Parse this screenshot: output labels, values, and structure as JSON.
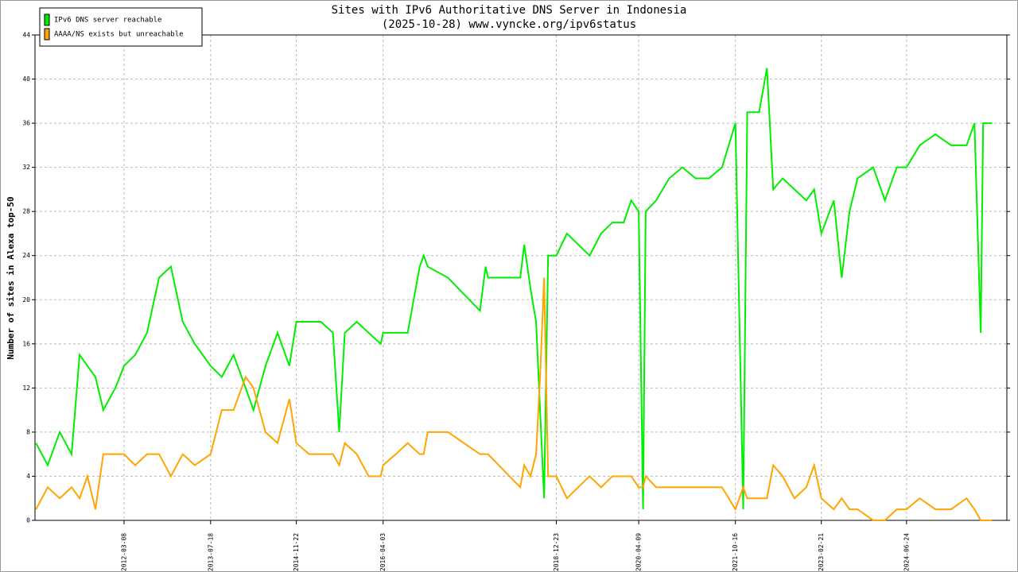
{
  "chart_data": {
    "type": "line",
    "title": "Sites with IPv6 Authoritative DNS Server in Indonesia",
    "subtitle": "(2025-10-28) www.vyncke.org/ipv6status",
    "y_label": "Number of sites in Alexa top-50",
    "x": [
      "2010-10-20",
      "2010-12-26",
      "2011-03-05",
      "2011-05-12",
      "2011-06-27",
      "2011-08-11",
      "2011-09-26",
      "2011-11-10",
      "2012-01-18",
      "2012-03-08",
      "2012-05-11",
      "2012-07-18",
      "2012-09-25",
      "2012-12-02",
      "2013-02-08",
      "2013-04-18",
      "2013-07-18",
      "2013-09-20",
      "2013-11-27",
      "2014-02-04",
      "2014-03-21",
      "2014-05-29",
      "2014-08-06",
      "2014-10-13",
      "2014-11-22",
      "2015-02-03",
      "2015-04-12",
      "2015-06-20",
      "2015-07-26",
      "2015-08-27",
      "2015-11-04",
      "2016-01-11",
      "2016-03-20",
      "2016-04-03",
      "2016-06-15",
      "2016-08-22",
      "2016-10-30",
      "2016-11-22",
      "2016-12-15",
      "2017-04-10",
      "2017-10-11",
      "2017-11-12",
      "2017-11-26",
      "2018-05-30",
      "2018-06-22",
      "2018-07-28",
      "2018-08-29",
      "2018-09-21",
      "2018-10-14",
      "2018-11-06",
      "2018-12-23",
      "2019-02-22",
      "2019-04-28",
      "2019-07-02",
      "2019-09-06",
      "2019-11-10",
      "2020-01-14",
      "2020-02-26",
      "2020-04-09",
      "2020-05-04",
      "2020-05-19",
      "2020-07-18",
      "2020-10-01",
      "2020-12-16",
      "2021-03-01",
      "2021-05-17",
      "2021-07-31",
      "2021-10-16",
      "2021-11-30",
      "2021-12-23",
      "2022-03-01",
      "2022-04-15",
      "2022-05-21",
      "2022-07-14",
      "2022-09-20",
      "2022-11-27",
      "2023-01-11",
      "2023-02-21",
      "2023-05-04",
      "2023-06-18",
      "2023-08-02",
      "2023-09-17",
      "2023-12-16",
      "2024-02-21",
      "2024-04-29",
      "2024-06-24",
      "2024-09-08",
      "2024-12-07",
      "2025-03-07",
      "2025-06-04",
      "2025-07-19",
      "2025-08-24",
      "2025-09-07",
      "2025-10-28"
    ],
    "series": [
      {
        "name": "IPv6 DNS server reachable",
        "color": "#00ee00",
        "values": [
          7,
          5,
          8,
          6,
          15,
          14,
          13,
          10,
          12,
          14,
          15,
          17,
          22,
          23,
          18,
          16,
          14,
          13,
          15,
          12,
          10,
          14,
          17,
          14,
          18,
          18,
          18,
          17,
          8,
          17,
          18,
          17,
          16,
          17,
          17,
          17,
          23,
          24,
          23,
          22,
          19,
          23,
          22,
          22,
          25,
          21,
          18,
          10,
          2,
          24,
          24,
          26,
          25,
          24,
          26,
          27,
          27,
          29,
          28,
          1,
          28,
          29,
          31,
          32,
          31,
          31,
          32,
          36,
          1,
          37,
          37,
          41,
          30,
          31,
          30,
          29,
          30,
          26,
          29,
          22,
          28,
          31,
          32,
          29,
          32,
          32,
          34,
          35,
          34,
          34,
          36,
          17,
          36,
          36
        ]
      },
      {
        "name": "AAAA/NS exists but unreachable",
        "color": "#ffa500",
        "values": [
          1,
          3,
          2,
          3,
          2,
          4,
          1,
          6,
          6,
          6,
          5,
          6,
          6,
          4,
          6,
          5,
          6,
          10,
          10,
          13,
          12,
          8,
          7,
          11,
          7,
          6,
          6,
          6,
          5,
          7,
          6,
          4,
          4,
          5,
          6,
          7,
          6,
          6,
          8,
          8,
          6,
          6,
          6,
          3,
          5,
          4,
          6,
          13,
          22,
          4,
          4,
          2,
          3,
          4,
          3,
          4,
          4,
          4,
          3,
          3,
          4,
          3,
          3,
          3,
          3,
          3,
          3,
          1,
          3,
          2,
          2,
          2,
          5,
          4,
          2,
          3,
          5,
          2,
          1,
          2,
          1,
          1,
          0,
          0,
          1,
          1,
          2,
          1,
          1,
          2,
          1,
          0,
          0,
          0
        ]
      }
    ],
    "xlim": [
      "2010-10-14",
      "2026-01-21"
    ],
    "xticks": [
      "2012-03-08",
      "2013-07-18",
      "2014-11-22",
      "2016-04-03",
      "2018-12-23",
      "2020-04-09",
      "2021-10-16",
      "2023-02-21",
      "2024-06-24"
    ],
    "ylim": [
      0,
      44
    ],
    "yticks": [
      0,
      4,
      8,
      12,
      16,
      20,
      24,
      28,
      32,
      36,
      40,
      44
    ],
    "grid": true,
    "legend": "top-left"
  }
}
